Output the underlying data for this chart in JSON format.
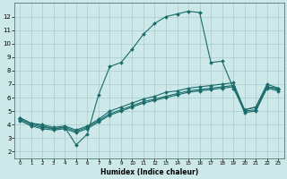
{
  "title": "",
  "xlabel": "Humidex (Indice chaleur)",
  "ylabel": "",
  "background_color": "#cce8e8",
  "grid_color": "#aacccc",
  "line_color": "#1a6b6b",
  "xlim": [
    -0.5,
    23.5
  ],
  "ylim": [
    1.5,
    13.0
  ],
  "xticks": [
    0,
    1,
    2,
    3,
    4,
    5,
    6,
    7,
    8,
    9,
    10,
    11,
    12,
    13,
    14,
    15,
    16,
    17,
    18,
    19,
    20,
    21,
    22,
    23
  ],
  "yticks": [
    2,
    3,
    4,
    5,
    6,
    7,
    8,
    9,
    10,
    11,
    12
  ],
  "line1_x": [
    0,
    1,
    2,
    3,
    4,
    5,
    6,
    7,
    8,
    9,
    10,
    11,
    12,
    13,
    14,
    15,
    16,
    17,
    18,
    19,
    20,
    21,
    22,
    23
  ],
  "line1_y": [
    4.5,
    4.1,
    3.9,
    3.7,
    3.8,
    2.5,
    3.3,
    6.2,
    8.3,
    8.6,
    9.6,
    10.7,
    11.5,
    12.0,
    12.2,
    12.4,
    12.3,
    8.6,
    8.7,
    6.7,
    5.1,
    5.3,
    6.8,
    6.7
  ],
  "line2_x": [
    0,
    1,
    2,
    3,
    4,
    5,
    6,
    7,
    8,
    9,
    10,
    11,
    12,
    13,
    14,
    15,
    16,
    17,
    18,
    19,
    20,
    21,
    22,
    23
  ],
  "line2_y": [
    4.5,
    4.1,
    4.0,
    3.8,
    3.9,
    3.6,
    3.9,
    4.4,
    5.0,
    5.3,
    5.6,
    5.9,
    6.1,
    6.4,
    6.5,
    6.7,
    6.8,
    6.9,
    7.0,
    7.1,
    5.1,
    5.3,
    7.0,
    6.7
  ],
  "line3_x": [
    0,
    1,
    2,
    3,
    4,
    5,
    6,
    7,
    8,
    9,
    10,
    11,
    12,
    13,
    14,
    15,
    16,
    17,
    18,
    19,
    20,
    21,
    22,
    23
  ],
  "line3_y": [
    4.4,
    4.0,
    3.8,
    3.7,
    3.8,
    3.5,
    3.8,
    4.3,
    4.8,
    5.1,
    5.4,
    5.7,
    5.9,
    6.1,
    6.3,
    6.5,
    6.6,
    6.7,
    6.8,
    6.9,
    5.0,
    5.1,
    6.8,
    6.6
  ],
  "line4_x": [
    0,
    1,
    2,
    3,
    4,
    5,
    6,
    7,
    8,
    9,
    10,
    11,
    12,
    13,
    14,
    15,
    16,
    17,
    18,
    19,
    20,
    21,
    22,
    23
  ],
  "line4_y": [
    4.3,
    3.9,
    3.7,
    3.6,
    3.7,
    3.4,
    3.7,
    4.2,
    4.7,
    5.0,
    5.3,
    5.6,
    5.8,
    6.0,
    6.2,
    6.4,
    6.5,
    6.6,
    6.7,
    6.8,
    4.9,
    5.0,
    6.7,
    6.5
  ]
}
